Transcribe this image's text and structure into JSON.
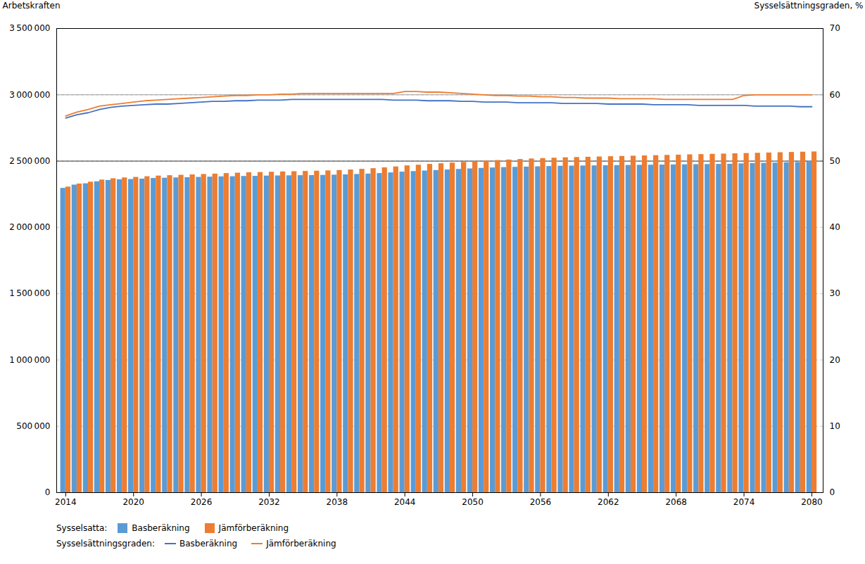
{
  "chart_data": {
    "type": "bar",
    "x": [
      2014,
      2015,
      2016,
      2017,
      2018,
      2019,
      2020,
      2021,
      2022,
      2023,
      2024,
      2025,
      2026,
      2027,
      2028,
      2029,
      2030,
      2031,
      2032,
      2033,
      2034,
      2035,
      2036,
      2037,
      2038,
      2039,
      2040,
      2041,
      2042,
      2043,
      2044,
      2045,
      2046,
      2047,
      2048,
      2049,
      2050,
      2051,
      2052,
      2053,
      2054,
      2055,
      2056,
      2057,
      2058,
      2059,
      2060,
      2061,
      2062,
      2063,
      2064,
      2065,
      2066,
      2067,
      2068,
      2069,
      2070,
      2071,
      2072,
      2073,
      2074,
      2075,
      2076,
      2077,
      2078,
      2079,
      2080
    ],
    "xlim": [
      2013.2,
      2081
    ],
    "xticks": [
      2014,
      2020,
      2026,
      2032,
      2038,
      2044,
      2050,
      2056,
      2062,
      2068,
      2074,
      2080
    ],
    "ylabel": "Arbetskraften",
    "ylim": [
      0,
      3500000
    ],
    "yticks": [
      0,
      {
        "value": 500000,
        "label": "500 000"
      },
      {
        "value": 1000000,
        "label": "1 000 000"
      },
      {
        "value": 1500000,
        "label": "1 500 000"
      },
      {
        "value": 2000000,
        "label": "2 000 000"
      },
      {
        "value": 2500000,
        "label": "2 500 000"
      },
      {
        "value": 3000000,
        "label": "3 000 000"
      },
      {
        "value": 3500000,
        "label": "3 500 000"
      }
    ],
    "y2label": "Sysselsättningsgraden, %",
    "y2lim": [
      0,
      70
    ],
    "y2ticks": [
      0,
      10,
      20,
      30,
      40,
      50,
      60,
      70
    ],
    "grid": true,
    "legend": "bottom",
    "annotations": [
      "Sysselsatta:",
      "Sysselsättningsgraden:"
    ],
    "hlines": [
      {
        "y": 3000000,
        "color": "#888888"
      },
      {
        "y": 2500000,
        "color": "#000000"
      }
    ],
    "series": [
      {
        "name": "Basberäkning",
        "type": "bar",
        "color": "#5B9BD5",
        "values": [
          2295000,
          2320000,
          2330000,
          2345000,
          2355000,
          2360000,
          2362000,
          2365000,
          2370000,
          2372000,
          2374000,
          2376000,
          2378000,
          2380000,
          2382000,
          2383000,
          2385000,
          2386000,
          2388000,
          2389000,
          2390000,
          2391000,
          2392000,
          2393000,
          2395000,
          2397000,
          2400000,
          2403000,
          2407000,
          2412000,
          2418000,
          2422000,
          2426000,
          2430000,
          2434000,
          2438000,
          2442000,
          2446000,
          2449000,
          2452000,
          2454000,
          2456000,
          2458000,
          2460000,
          2462000,
          2463000,
          2464000,
          2465000,
          2466000,
          2467000,
          2468000,
          2469000,
          2470000,
          2471000,
          2472000,
          2473000,
          2474000,
          2475000,
          2476000,
          2477000,
          2480000,
          2482000,
          2484000,
          2486000,
          2488000,
          2490000,
          2492000
        ]
      },
      {
        "name": "Jämförberäkning",
        "type": "bar",
        "color": "#ED7D31",
        "values": [
          2305000,
          2328000,
          2342000,
          2358000,
          2368000,
          2374000,
          2378000,
          2383000,
          2388000,
          2391000,
          2394000,
          2397000,
          2400000,
          2403000,
          2407000,
          2410000,
          2413000,
          2415000,
          2417000,
          2419000,
          2421000,
          2423000,
          2425000,
          2427000,
          2430000,
          2434000,
          2439000,
          2444000,
          2450000,
          2457000,
          2465000,
          2470000,
          2476000,
          2481000,
          2486000,
          2491000,
          2496000,
          2501000,
          2505000,
          2509000,
          2513000,
          2517000,
          2520000,
          2523000,
          2526000,
          2528000,
          2530000,
          2532000,
          2534000,
          2536000,
          2538000,
          2540000,
          2542000,
          2544000,
          2546000,
          2548000,
          2550000,
          2552000,
          2554000,
          2556000,
          2558000,
          2560000,
          2562000,
          2564000,
          2566000,
          2568000,
          2570000
        ]
      },
      {
        "name": "Basberäkning",
        "type": "line",
        "axis": "y2",
        "color": "#4472C4",
        "values": [
          56.5,
          57.0,
          57.3,
          57.8,
          58.1,
          58.3,
          58.4,
          58.5,
          58.6,
          58.6,
          58.7,
          58.8,
          58.9,
          59.0,
          59.0,
          59.1,
          59.1,
          59.2,
          59.2,
          59.2,
          59.3,
          59.3,
          59.3,
          59.3,
          59.3,
          59.3,
          59.3,
          59.3,
          59.3,
          59.2,
          59.2,
          59.2,
          59.1,
          59.1,
          59.1,
          59.0,
          59.0,
          58.9,
          58.9,
          58.9,
          58.8,
          58.8,
          58.8,
          58.8,
          58.7,
          58.7,
          58.7,
          58.7,
          58.6,
          58.6,
          58.6,
          58.6,
          58.5,
          58.5,
          58.5,
          58.5,
          58.4,
          58.4,
          58.4,
          58.4,
          58.4,
          58.3,
          58.3,
          58.3,
          58.3,
          58.2,
          58.2
        ]
      },
      {
        "name": "Jämförberäkning",
        "type": "line",
        "axis": "y2",
        "color": "#ED7D31",
        "values": [
          56.8,
          57.4,
          57.8,
          58.3,
          58.5,
          58.7,
          58.9,
          59.1,
          59.2,
          59.3,
          59.4,
          59.5,
          59.6,
          59.7,
          59.8,
          59.9,
          59.9,
          60.0,
          60.0,
          60.1,
          60.1,
          60.2,
          60.2,
          60.2,
          60.2,
          60.2,
          60.2,
          60.2,
          60.2,
          60.2,
          60.5,
          60.5,
          60.4,
          60.4,
          60.3,
          60.2,
          60.1,
          60.0,
          59.9,
          59.9,
          59.8,
          59.8,
          59.7,
          59.7,
          59.6,
          59.6,
          59.5,
          59.5,
          59.5,
          59.4,
          59.4,
          59.4,
          59.4,
          59.3,
          59.3,
          59.3,
          59.3,
          59.3,
          59.3,
          59.3,
          59.9,
          60.0,
          60.0,
          60.0,
          60.0,
          60.0,
          60.0
        ]
      }
    ]
  }
}
